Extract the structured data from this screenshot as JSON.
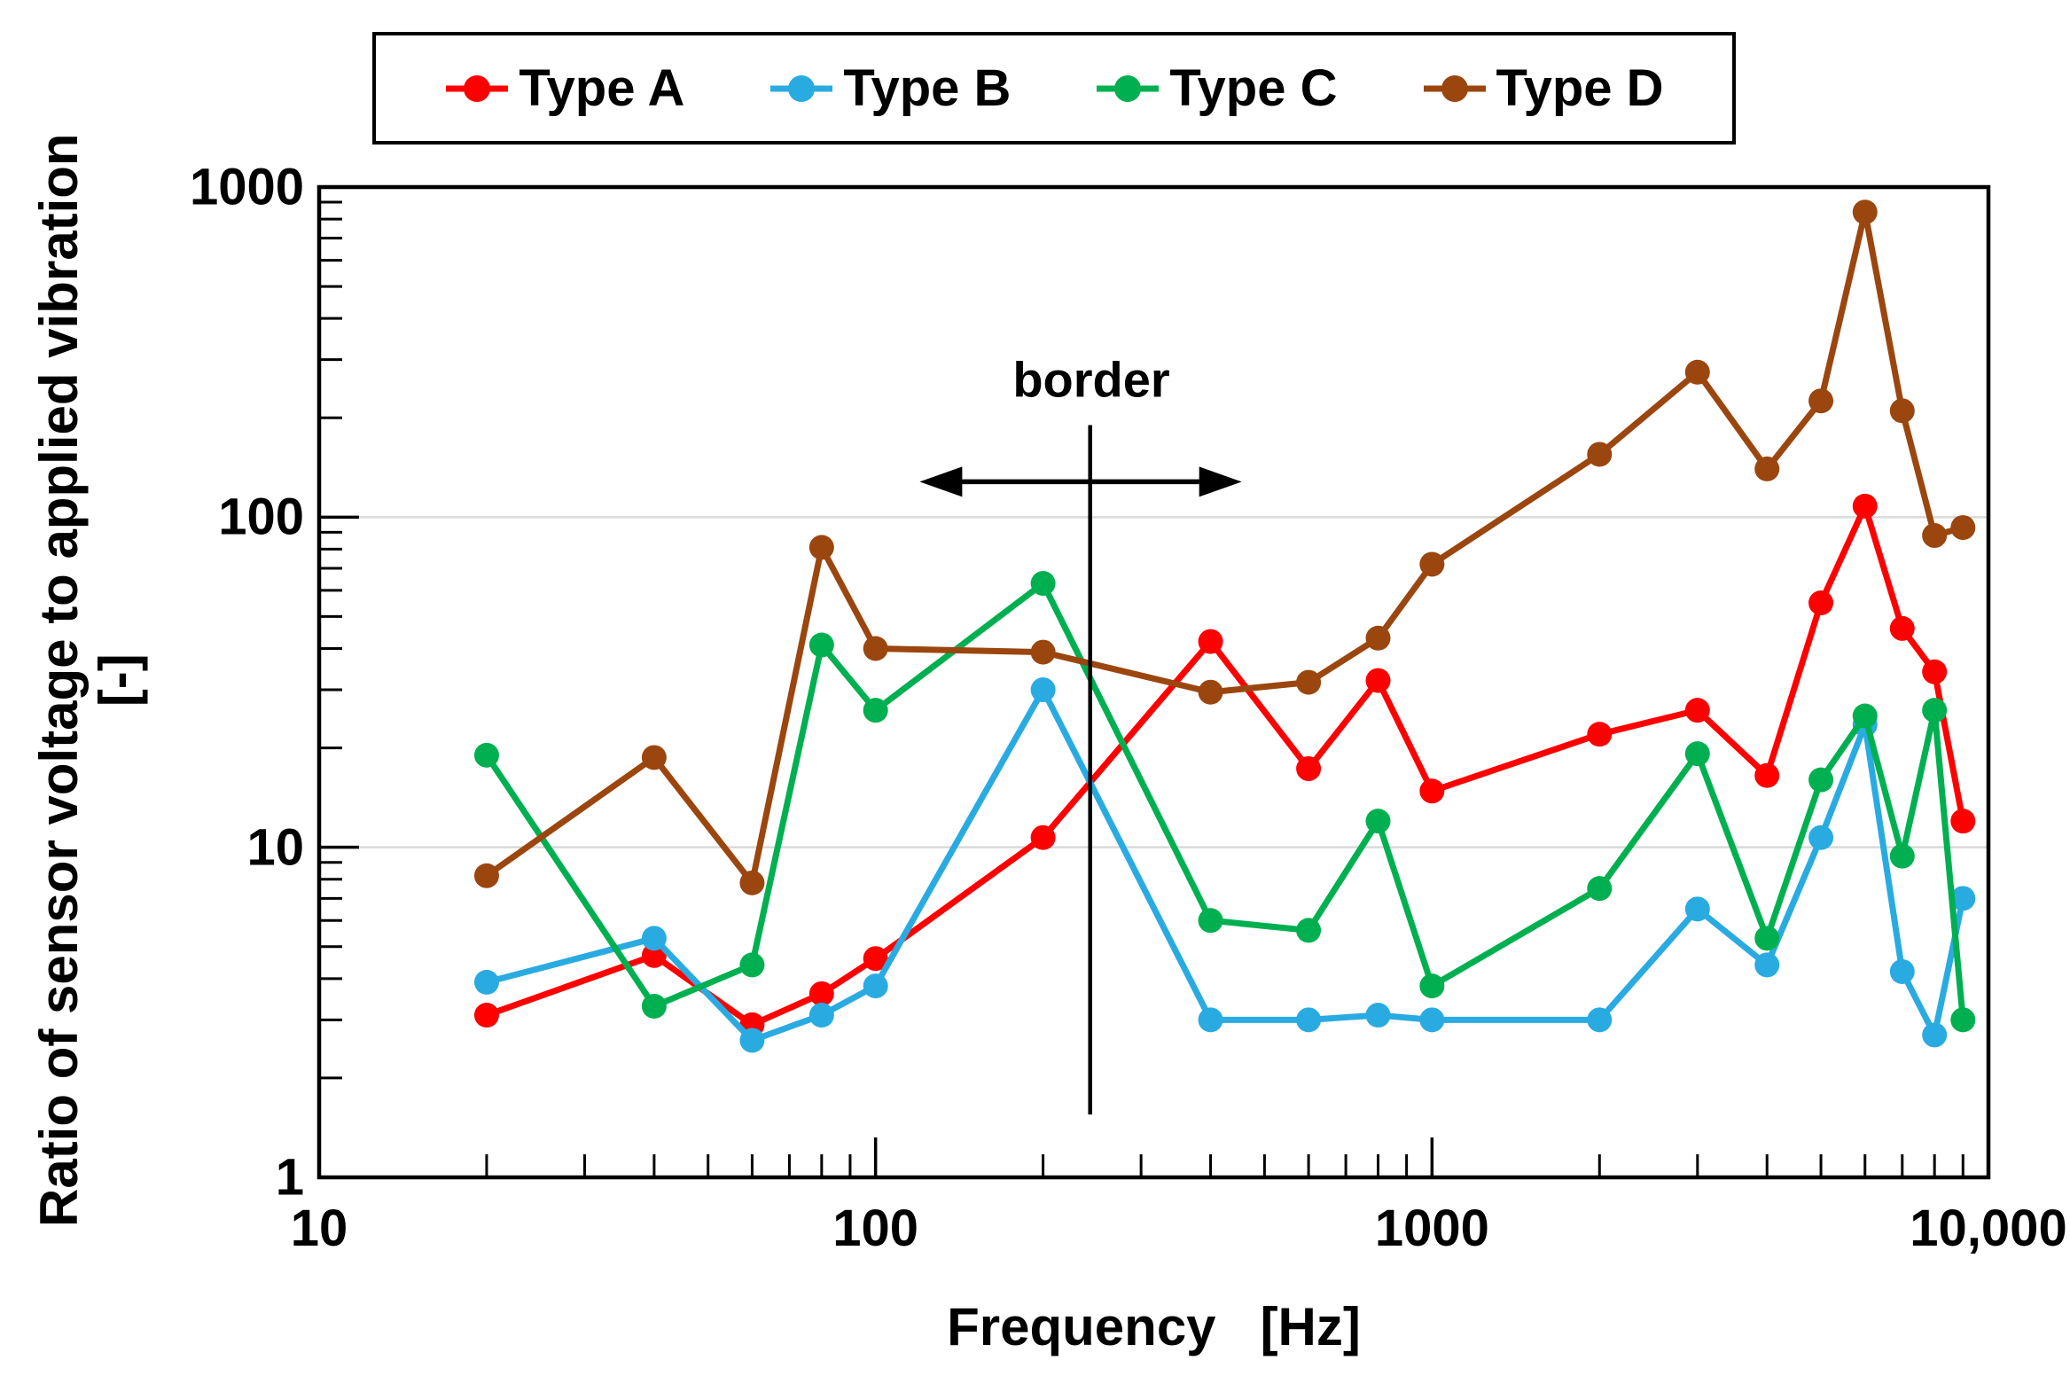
{
  "figure": {
    "background": "#FFFFFF",
    "frame_color": "#000000",
    "gridline_color": "#D9D9D9",
    "tick_color": "#000000"
  },
  "chart_data": {
    "type": "line",
    "title": "",
    "xlabel": "Frequency   [Hz]",
    "ylabel": "Ratio of sensor voltage to applied vibration",
    "ylabel_unit": "[-]",
    "x_scale": "log",
    "y_scale": "log",
    "xlim": [
      10,
      10000
    ],
    "ylim": [
      1,
      1000
    ],
    "grid": "horizontal only",
    "gridlines_y": [
      10,
      100
    ],
    "legend_position": "top",
    "x_tick_labels": [
      {
        "value": 10,
        "label": "10"
      },
      {
        "value": 100,
        "label": "100"
      },
      {
        "value": 1000,
        "label": "1000"
      },
      {
        "value": 10000,
        "label": "10,000"
      }
    ],
    "y_tick_labels": [
      {
        "value": 1,
        "label": "1"
      },
      {
        "value": 10,
        "label": "10"
      },
      {
        "value": 100,
        "label": "100"
      },
      {
        "value": 1000,
        "label": "1000"
      }
    ],
    "x": [
      20,
      40,
      60,
      80,
      100,
      200,
      400,
      600,
      800,
      1000,
      2000,
      3000,
      4000,
      5000,
      6000,
      7000,
      8000,
      9000
    ],
    "series": [
      {
        "name": "Type A",
        "color": "#FF0000",
        "values": [
          3.1,
          4.7,
          2.9,
          3.6,
          4.6,
          10.7,
          42,
          17.3,
          32,
          14.8,
          22,
          26,
          16.5,
          55,
          108,
          46,
          34,
          12
        ]
      },
      {
        "name": "Type B",
        "color": "#29ABE2",
        "values": [
          3.9,
          5.3,
          2.6,
          3.1,
          3.8,
          30,
          3.0,
          3.0,
          3.1,
          3.0,
          3.0,
          6.5,
          4.4,
          10.7,
          23.5,
          4.2,
          2.7,
          7.0
        ]
      },
      {
        "name": "Type C",
        "color": "#00B050",
        "values": [
          19,
          3.3,
          4.4,
          41,
          26,
          63,
          6.0,
          5.6,
          12,
          3.8,
          7.5,
          19.2,
          5.3,
          16,
          25,
          9.4,
          26,
          3.0
        ]
      },
      {
        "name": "Type D",
        "color": "#9B460F",
        "values": [
          8.2,
          18.7,
          7.8,
          81,
          40,
          39,
          29.5,
          31.6,
          43,
          72,
          155,
          275,
          140,
          225,
          840,
          210,
          88,
          93
        ]
      }
    ],
    "annotation": {
      "label": "border",
      "x_hz": 243,
      "line_v_range": [
        1.55,
        190
      ],
      "arrow_v": 128,
      "arrow_hz_range": [
        120,
        455
      ]
    }
  }
}
